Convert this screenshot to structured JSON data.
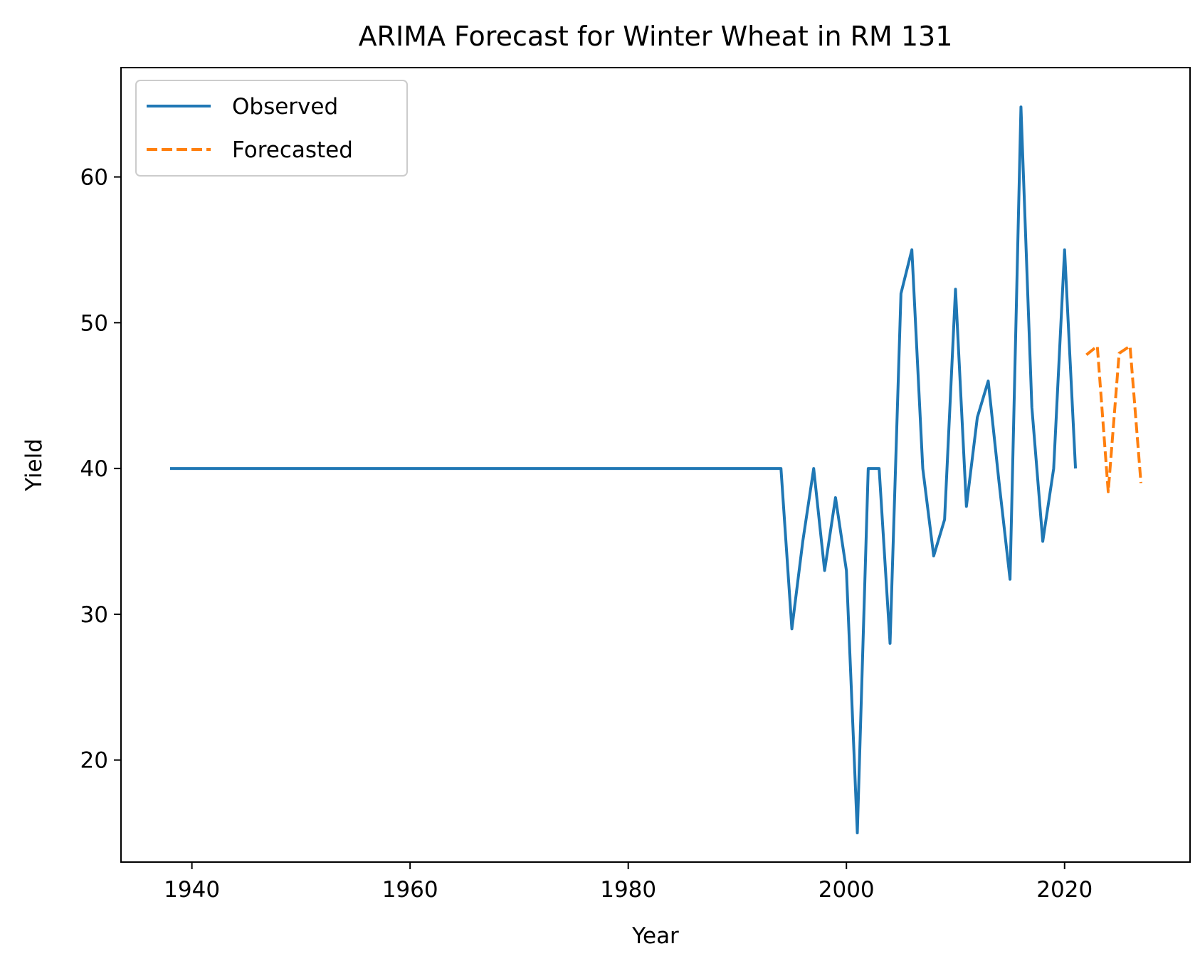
{
  "chart_data": {
    "type": "line",
    "title": "ARIMA Forecast for Winter Wheat in RM 131",
    "xlabel": "Year",
    "ylabel": "Yield",
    "xlim": [
      1933.5,
      2031.5
    ],
    "ylim": [
      13.0,
      67.5
    ],
    "xticks": [
      1940,
      1960,
      1980,
      2000,
      2020
    ],
    "yticks": [
      20,
      30,
      40,
      50,
      60
    ],
    "grid": false,
    "legend_position": "top-left",
    "series": [
      {
        "name": "Observed",
        "color": "#1f77b4",
        "style": "solid",
        "x": [
          1938,
          1994,
          1995,
          1996,
          1997,
          1998,
          1999,
          2000,
          2001,
          2002,
          2003,
          2004,
          2005,
          2006,
          2007,
          2008,
          2009,
          2010,
          2011,
          2012,
          2013,
          2014,
          2015,
          2016,
          2017,
          2018,
          2019,
          2020,
          2021
        ],
        "y": [
          40,
          40,
          29,
          35,
          40,
          33,
          38,
          33,
          15,
          40,
          40,
          28,
          52,
          55,
          40,
          34,
          36.5,
          52.3,
          37.4,
          43.5,
          46,
          39,
          32.4,
          64.8,
          44.2,
          35,
          40,
          55,
          40
        ]
      },
      {
        "name": "Forecasted",
        "color": "#ff7f0e",
        "style": "dashed",
        "x": [
          2022,
          2023,
          2024,
          2025,
          2026,
          2027
        ],
        "y": [
          47.8,
          48.4,
          38.4,
          47.9,
          48.4,
          39
        ]
      }
    ]
  }
}
